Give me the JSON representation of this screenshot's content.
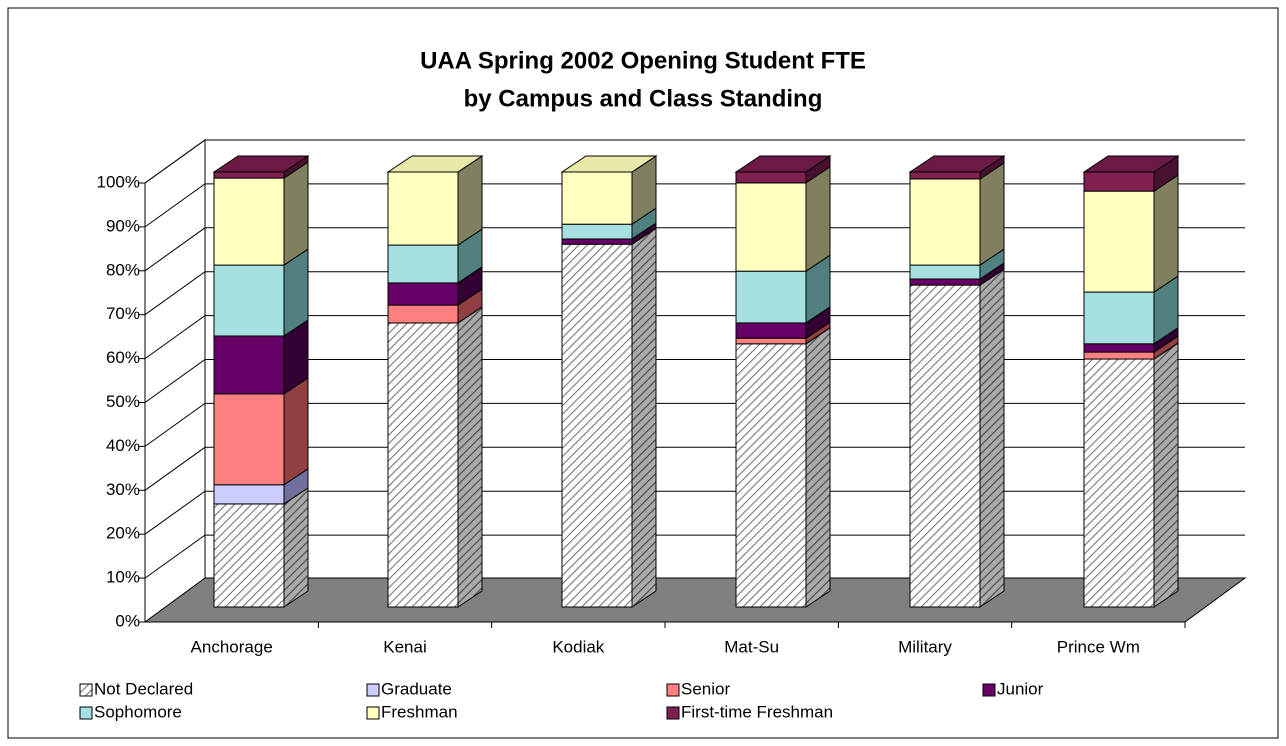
{
  "chart_data": {
    "type": "bar",
    "stacked": true,
    "title": [
      "UAA Spring 2002 Opening Student FTE",
      "by Campus and Class Standing"
    ],
    "categories": [
      "Anchorage",
      "Kenai",
      "Kodiak",
      "Mat-Su",
      "Military",
      "Prince Wm"
    ],
    "series": [
      {
        "name": "Not Declared",
        "color": "hatch",
        "values": [
          23.7,
          65.3,
          83.4,
          60.5,
          74.0,
          57.0
        ]
      },
      {
        "name": "Graduate",
        "color": "#ccccff",
        "values": [
          4.4,
          0,
          0,
          0,
          0,
          0
        ]
      },
      {
        "name": "Senior",
        "color": "#ff8080",
        "values": [
          20.9,
          4.1,
          0,
          1.3,
          0,
          1.6
        ]
      },
      {
        "name": "Junior",
        "color": "#660066",
        "values": [
          13.3,
          5.1,
          1.2,
          3.5,
          1.4,
          1.9
        ]
      },
      {
        "name": "Sophomore",
        "color": "#a6e0e0",
        "values": [
          16.3,
          8.7,
          3.4,
          11.9,
          3.2,
          11.9
        ]
      },
      {
        "name": "Freshman",
        "color": "#ffffc0",
        "values": [
          20.0,
          16.8,
          12.0,
          20.3,
          19.8,
          23.2
        ]
      },
      {
        "name": "First-time Freshman",
        "color": "#802050",
        "values": [
          1.4,
          0,
          0,
          2.5,
          1.6,
          4.4
        ]
      }
    ],
    "ylim": [
      0,
      100
    ],
    "yticks": [
      {
        "value": 0,
        "label": "0%"
      },
      {
        "value": 10,
        "label": "10%"
      },
      {
        "value": 20,
        "label": "20%"
      },
      {
        "value": 30,
        "label": "30%"
      },
      {
        "value": 40,
        "label": "40%"
      },
      {
        "value": 50,
        "label": "50%"
      },
      {
        "value": 60,
        "label": "60%"
      },
      {
        "value": 70,
        "label": "70%"
      },
      {
        "value": 80,
        "label": "80%"
      },
      {
        "value": 90,
        "label": "90%"
      },
      {
        "value": 100,
        "label": "100%"
      }
    ],
    "grid": true,
    "legend": "bottom"
  }
}
